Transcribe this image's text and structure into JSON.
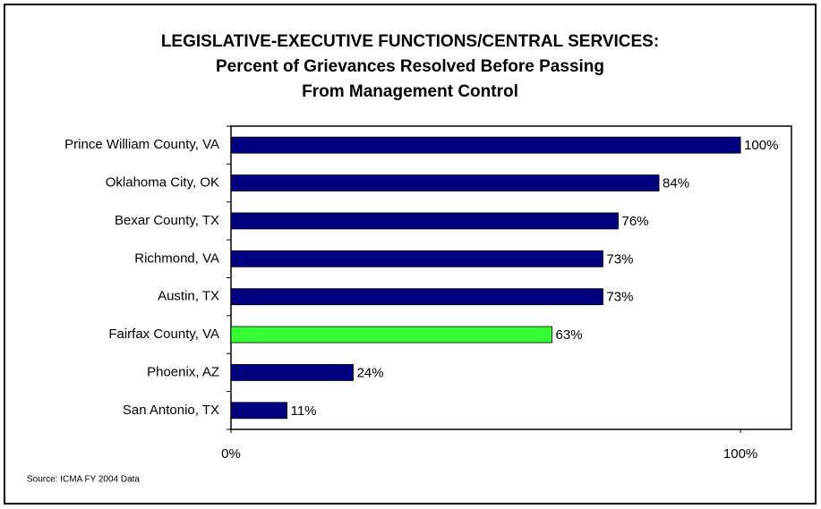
{
  "chart_data": {
    "type": "bar",
    "orientation": "horizontal",
    "title": [
      "LEGISLATIVE-EXECUTIVE FUNCTIONS/CENTRAL SERVICES:",
      "Percent of Grievances Resolved Before Passing",
      "From Management Control"
    ],
    "categories": [
      "Prince William County, VA",
      "Oklahoma City, OK",
      "Bexar County, TX",
      "Richmond, VA",
      "Austin, TX",
      "Fairfax County, VA",
      "Phoenix, AZ",
      "San Antonio, TX"
    ],
    "values": [
      100,
      84,
      76,
      73,
      73,
      63,
      24,
      11
    ],
    "value_labels": [
      "100%",
      "84%",
      "76%",
      "73%",
      "73%",
      "63%",
      "24%",
      "11%"
    ],
    "colors": [
      "#000080",
      "#000080",
      "#000080",
      "#000080",
      "#000080",
      "#33ff33",
      "#000080",
      "#000080"
    ],
    "xlim": [
      0,
      110
    ],
    "xticks": [
      {
        "value": 0,
        "label": "0%"
      },
      {
        "value": 100,
        "label": "100%"
      }
    ],
    "source": "Source: ICMA  FY 2004 Data"
  }
}
